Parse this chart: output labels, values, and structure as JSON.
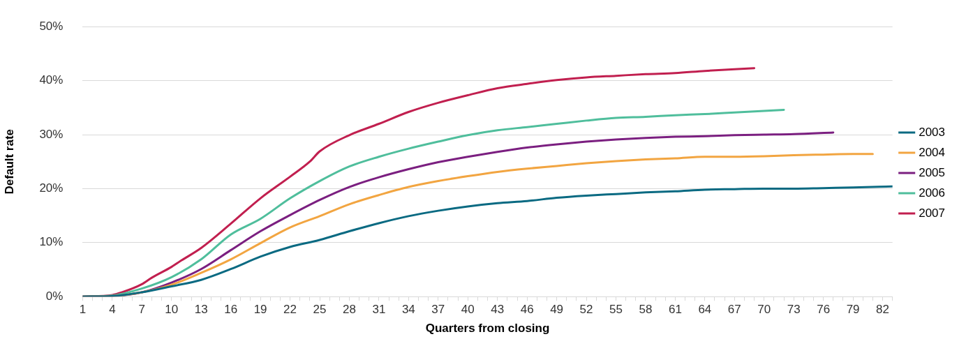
{
  "chart_data": {
    "type": "line",
    "xlabel": "Quarters from closing",
    "ylabel": "Default rate",
    "xlim": [
      1,
      83
    ],
    "xticks": [
      1,
      {
        "value": 2,
        "label": null
      },
      {
        "value": 3,
        "label": null
      },
      4,
      {
        "value": 5,
        "label": null
      },
      {
        "value": 6,
        "label": null
      },
      7,
      {
        "value": 8,
        "label": null
      },
      {
        "value": 9,
        "label": null
      },
      10,
      {
        "value": 11,
        "label": null
      },
      {
        "value": 12,
        "label": null
      },
      13,
      {
        "value": 14,
        "label": null
      },
      {
        "value": 15,
        "label": null
      },
      16,
      {
        "value": 17,
        "label": null
      },
      {
        "value": 18,
        "label": null
      },
      19,
      {
        "value": 20,
        "label": null
      },
      {
        "value": 21,
        "label": null
      },
      22,
      {
        "value": 23,
        "label": null
      },
      {
        "value": 24,
        "label": null
      },
      25,
      {
        "value": 26,
        "label": null
      },
      {
        "value": 27,
        "label": null
      },
      28,
      {
        "value": 29,
        "label": null
      },
      {
        "value": 30,
        "label": null
      },
      31,
      {
        "value": 32,
        "label": null
      },
      {
        "value": 33,
        "label": null
      },
      34,
      {
        "value": 35,
        "label": null
      },
      {
        "value": 36,
        "label": null
      },
      37,
      {
        "value": 38,
        "label": null
      },
      {
        "value": 39,
        "label": null
      },
      40,
      {
        "value": 41,
        "label": null
      },
      {
        "value": 42,
        "label": null
      },
      43,
      {
        "value": 44,
        "label": null
      },
      {
        "value": 45,
        "label": null
      },
      46,
      {
        "value": 47,
        "label": null
      },
      {
        "value": 48,
        "label": null
      },
      49,
      {
        "value": 50,
        "label": null
      },
      {
        "value": 51,
        "label": null
      },
      52,
      {
        "value": 53,
        "label": null
      },
      {
        "value": 54,
        "label": null
      },
      55,
      {
        "value": 56,
        "label": null
      },
      {
        "value": 57,
        "label": null
      },
      58,
      {
        "value": 59,
        "label": null
      },
      {
        "value": 60,
        "label": null
      },
      61,
      {
        "value": 62,
        "label": null
      },
      {
        "value": 63,
        "label": null
      },
      64,
      {
        "value": 65,
        "label": null
      },
      {
        "value": 66,
        "label": null
      },
      67,
      {
        "value": 68,
        "label": null
      },
      {
        "value": 69,
        "label": null
      },
      70,
      {
        "value": 71,
        "label": null
      },
      {
        "value": 72,
        "label": null
      },
      73,
      {
        "value": 74,
        "label": null
      },
      {
        "value": 75,
        "label": null
      },
      76,
      {
        "value": 77,
        "label": null
      },
      {
        "value": 78,
        "label": null
      },
      79,
      {
        "value": 80,
        "label": null
      },
      {
        "value": 81,
        "label": null
      },
      82,
      {
        "value": 83,
        "label": null
      }
    ],
    "ylim": [
      0,
      50
    ],
    "yticks": [
      {
        "value": 0,
        "label": "0%"
      },
      {
        "value": 10,
        "label": "10%"
      },
      {
        "value": 20,
        "label": "20%"
      },
      {
        "value": 30,
        "label": "30%"
      },
      {
        "value": 40,
        "label": "40%"
      },
      {
        "value": 50,
        "label": "50%"
      }
    ],
    "grid": "y",
    "legend": "right",
    "marker": "none",
    "line_style": "solid",
    "series": [
      {
        "name": "2003",
        "color": "#0a6a82",
        "x": [
          1,
          4,
          7,
          10,
          13,
          16,
          19,
          22,
          25,
          28,
          31,
          34,
          37,
          40,
          43,
          46,
          49,
          52,
          55,
          58,
          61,
          64,
          67,
          70,
          73,
          76,
          79,
          83
        ],
        "values": [
          0,
          0.1,
          0.8,
          1.9,
          3.1,
          5.1,
          7.4,
          9.2,
          10.5,
          12.1,
          13.6,
          14.9,
          15.9,
          16.7,
          17.3,
          17.7,
          18.3,
          18.7,
          19.0,
          19.3,
          19.5,
          19.8,
          19.9,
          20.0,
          20.0,
          20.1,
          20.2,
          20.4
        ]
      },
      {
        "name": "2004",
        "color": "#f2a541",
        "x": [
          1,
          4,
          7,
          10,
          13,
          16,
          19,
          22,
          25,
          28,
          31,
          34,
          37,
          40,
          43,
          46,
          49,
          52,
          55,
          58,
          61,
          64,
          67,
          70,
          73,
          76,
          79,
          81
        ],
        "values": [
          0,
          0.1,
          0.8,
          2.2,
          4.4,
          6.9,
          9.9,
          12.8,
          14.9,
          17.1,
          18.8,
          20.3,
          21.4,
          22.3,
          23.1,
          23.7,
          24.2,
          24.7,
          25.1,
          25.4,
          25.6,
          25.9,
          25.9,
          26.0,
          26.2,
          26.3,
          26.4,
          26.4
        ]
      },
      {
        "name": "2005",
        "color": "#7b1f80",
        "x": [
          1,
          4,
          7,
          10,
          13,
          16,
          19,
          22,
          25,
          28,
          31,
          34,
          37,
          40,
          43,
          46,
          49,
          52,
          55,
          58,
          61,
          64,
          67,
          70,
          73,
          77
        ],
        "values": [
          0,
          0.1,
          0.8,
          2.6,
          5.1,
          8.6,
          12.1,
          15.1,
          17.9,
          20.3,
          22.1,
          23.6,
          24.9,
          25.9,
          26.8,
          27.6,
          28.2,
          28.7,
          29.1,
          29.4,
          29.6,
          29.7,
          29.9,
          30.0,
          30.1,
          30.4
        ]
      },
      {
        "name": "2006",
        "color": "#4fbe9c",
        "x": [
          1,
          4,
          7,
          10,
          13,
          16,
          19,
          22,
          25,
          28,
          31,
          34,
          37,
          40,
          43,
          46,
          49,
          52,
          55,
          58,
          61,
          64,
          67,
          70,
          72
        ],
        "values": [
          0,
          0.2,
          1.5,
          3.6,
          6.9,
          11.5,
          14.4,
          18.2,
          21.4,
          24.1,
          25.9,
          27.4,
          28.7,
          29.9,
          30.8,
          31.4,
          32.0,
          32.6,
          33.1,
          33.3,
          33.6,
          33.8,
          34.1,
          34.4,
          34.6
        ]
      },
      {
        "name": "2007",
        "color": "#c11f4f",
        "x": [
          1,
          4,
          5,
          7,
          8,
          10,
          11,
          13,
          16,
          19,
          22,
          24,
          25,
          28,
          31,
          34,
          37,
          40,
          43,
          46,
          49,
          52,
          55,
          58,
          61,
          64,
          67,
          69
        ],
        "values": [
          0,
          0.3,
          0.8,
          2.3,
          3.5,
          5.5,
          6.7,
          9.0,
          13.5,
          18.2,
          22.2,
          25.0,
          26.9,
          29.9,
          32.0,
          34.2,
          35.9,
          37.3,
          38.6,
          39.4,
          40.1,
          40.6,
          40.9,
          41.2,
          41.4,
          41.8,
          42.1,
          42.3
        ]
      }
    ]
  }
}
